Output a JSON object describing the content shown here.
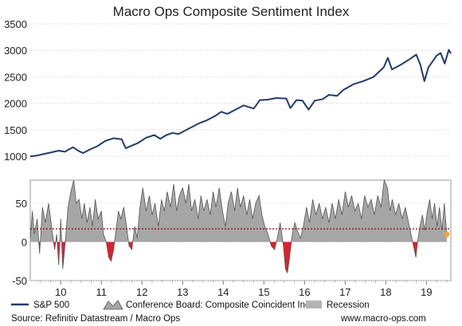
{
  "chart_data": [
    {
      "type": "line",
      "title": "Macro Ops Composite Sentiment Index",
      "y_ticks": [
        "1000",
        "1500",
        "2000",
        "2500",
        "3000",
        "3500"
      ],
      "ylim": [
        1000,
        3500
      ],
      "x_range": [
        2009.25,
        2019.6
      ],
      "grid": true,
      "series": [
        {
          "name": "S&P 500",
          "color": "#1f3b73",
          "points": [
            [
              2009.25,
              995
            ],
            [
              2009.4,
              1010
            ],
            [
              2009.6,
              1045
            ],
            [
              2009.75,
              1070
            ],
            [
              2009.95,
              1105
            ],
            [
              2010.1,
              1085
            ],
            [
              2010.3,
              1170
            ],
            [
              2010.45,
              1095
            ],
            [
              2010.55,
              1060
            ],
            [
              2010.7,
              1120
            ],
            [
              2010.9,
              1190
            ],
            [
              2011.1,
              1290
            ],
            [
              2011.3,
              1340
            ],
            [
              2011.5,
              1320
            ],
            [
              2011.6,
              1150
            ],
            [
              2011.75,
              1200
            ],
            [
              2011.9,
              1250
            ],
            [
              2012.1,
              1350
            ],
            [
              2012.3,
              1400
            ],
            [
              2012.45,
              1330
            ],
            [
              2012.6,
              1400
            ],
            [
              2012.75,
              1440
            ],
            [
              2012.9,
              1420
            ],
            [
              2013.1,
              1500
            ],
            [
              2013.4,
              1620
            ],
            [
              2013.6,
              1680
            ],
            [
              2013.8,
              1760
            ],
            [
              2013.95,
              1840
            ],
            [
              2014.1,
              1800
            ],
            [
              2014.3,
              1880
            ],
            [
              2014.5,
              1960
            ],
            [
              2014.75,
              1900
            ],
            [
              2014.9,
              2060
            ],
            [
              2015.1,
              2070
            ],
            [
              2015.3,
              2100
            ],
            [
              2015.55,
              2090
            ],
            [
              2015.65,
              1910
            ],
            [
              2015.8,
              2060
            ],
            [
              2015.95,
              2050
            ],
            [
              2016.1,
              1880
            ],
            [
              2016.25,
              2050
            ],
            [
              2016.45,
              2080
            ],
            [
              2016.6,
              2160
            ],
            [
              2016.8,
              2140
            ],
            [
              2016.95,
              2250
            ],
            [
              2017.2,
              2360
            ],
            [
              2017.45,
              2420
            ],
            [
              2017.7,
              2500
            ],
            [
              2017.95,
              2680
            ],
            [
              2018.05,
              2860
            ],
            [
              2018.15,
              2640
            ],
            [
              2018.35,
              2720
            ],
            [
              2018.6,
              2840
            ],
            [
              2018.75,
              2920
            ],
            [
              2018.85,
              2730
            ],
            [
              2018.95,
              2420
            ],
            [
              2019.05,
              2680
            ],
            [
              2019.25,
              2900
            ],
            [
              2019.35,
              2950
            ],
            [
              2019.45,
              2750
            ],
            [
              2019.55,
              3010
            ],
            [
              2019.6,
              2940
            ]
          ]
        }
      ]
    },
    {
      "type": "area",
      "y_ticks": [
        "-50",
        "0",
        "50"
      ],
      "ylim": [
        -50,
        80
      ],
      "x_range": [
        2009.25,
        2019.6
      ],
      "x_ticks": [
        "10",
        "11",
        "12",
        "13",
        "14",
        "15",
        "16",
        "17",
        "18",
        "19"
      ],
      "x_tick_values": [
        2010,
        2011,
        2012,
        2013,
        2014,
        2015,
        2016,
        2017,
        2018,
        2019
      ],
      "threshold": 17,
      "threshold_color": "#8b1a1a",
      "positive_color": "#a6a6a6",
      "negative_color": "#e0202a",
      "last_point": [
        2019.5,
        10
      ],
      "last_point_color": "#f5a623",
      "series": [
        {
          "name": "Conference Board: Composite Coincident Index",
          "points": [
            [
              2009.25,
              5
            ],
            [
              2009.3,
              40
            ],
            [
              2009.35,
              10
            ],
            [
              2009.42,
              30
            ],
            [
              2009.48,
              -15
            ],
            [
              2009.55,
              45
            ],
            [
              2009.62,
              25
            ],
            [
              2009.7,
              50
            ],
            [
              2009.78,
              18
            ],
            [
              2009.85,
              -10
            ],
            [
              2009.9,
              10
            ],
            [
              2009.95,
              -30
            ],
            [
              2010.0,
              30
            ],
            [
              2010.05,
              -35
            ],
            [
              2010.12,
              5
            ],
            [
              2010.18,
              45
            ],
            [
              2010.25,
              65
            ],
            [
              2010.32,
              80
            ],
            [
              2010.38,
              50
            ],
            [
              2010.45,
              55
            ],
            [
              2010.52,
              30
            ],
            [
              2010.58,
              50
            ],
            [
              2010.65,
              25
            ],
            [
              2010.72,
              45
            ],
            [
              2010.78,
              20
            ],
            [
              2010.85,
              55
            ],
            [
              2010.92,
              30
            ],
            [
              2011.0,
              40
            ],
            [
              2011.05,
              10
            ],
            [
              2011.12,
              0
            ],
            [
              2011.18,
              -20
            ],
            [
              2011.24,
              -25
            ],
            [
              2011.3,
              -10
            ],
            [
              2011.36,
              15
            ],
            [
              2011.42,
              40
            ],
            [
              2011.48,
              30
            ],
            [
              2011.55,
              45
            ],
            [
              2011.62,
              20
            ],
            [
              2011.68,
              -5
            ],
            [
              2011.75,
              -10
            ],
            [
              2011.82,
              20
            ],
            [
              2011.88,
              5
            ],
            [
              2011.95,
              45
            ],
            [
              2012.02,
              70
            ],
            [
              2012.1,
              40
            ],
            [
              2012.18,
              60
            ],
            [
              2012.25,
              35
            ],
            [
              2012.32,
              50
            ],
            [
              2012.4,
              20
            ],
            [
              2012.48,
              55
            ],
            [
              2012.55,
              40
            ],
            [
              2012.62,
              65
            ],
            [
              2012.7,
              45
            ],
            [
              2012.78,
              75
            ],
            [
              2012.85,
              40
            ],
            [
              2012.92,
              60
            ],
            [
              2013.0,
              70
            ],
            [
              2013.08,
              50
            ],
            [
              2013.15,
              75
            ],
            [
              2013.22,
              40
            ],
            [
              2013.3,
              55
            ],
            [
              2013.38,
              30
            ],
            [
              2013.45,
              60
            ],
            [
              2013.52,
              40
            ],
            [
              2013.6,
              55
            ],
            [
              2013.68,
              35
            ],
            [
              2013.75,
              65
            ],
            [
              2013.82,
              45
            ],
            [
              2013.9,
              70
            ],
            [
              2013.98,
              40
            ],
            [
              2014.05,
              20
            ],
            [
              2014.12,
              50
            ],
            [
              2014.2,
              65
            ],
            [
              2014.28,
              40
            ],
            [
              2014.35,
              70
            ],
            [
              2014.42,
              45
            ],
            [
              2014.5,
              60
            ],
            [
              2014.58,
              35
            ],
            [
              2014.65,
              55
            ],
            [
              2014.72,
              30
            ],
            [
              2014.8,
              50
            ],
            [
              2014.88,
              60
            ],
            [
              2014.95,
              35
            ],
            [
              2015.02,
              20
            ],
            [
              2015.1,
              10
            ],
            [
              2015.18,
              -5
            ],
            [
              2015.26,
              -10
            ],
            [
              2015.33,
              5
            ],
            [
              2015.4,
              25
            ],
            [
              2015.48,
              -5
            ],
            [
              2015.53,
              -35
            ],
            [
              2015.58,
              -40
            ],
            [
              2015.63,
              -20
            ],
            [
              2015.7,
              10
            ],
            [
              2015.76,
              25
            ],
            [
              2015.82,
              15
            ],
            [
              2015.9,
              5
            ],
            [
              2015.97,
              20
            ],
            [
              2016.05,
              45
            ],
            [
              2016.12,
              25
            ],
            [
              2016.2,
              55
            ],
            [
              2016.28,
              35
            ],
            [
              2016.36,
              50
            ],
            [
              2016.44,
              30
            ],
            [
              2016.52,
              45
            ],
            [
              2016.6,
              25
            ],
            [
              2016.68,
              50
            ],
            [
              2016.76,
              30
            ],
            [
              2016.84,
              55
            ],
            [
              2016.92,
              35
            ],
            [
              2017.0,
              65
            ],
            [
              2017.08,
              45
            ],
            [
              2017.16,
              60
            ],
            [
              2017.24,
              40
            ],
            [
              2017.32,
              50
            ],
            [
              2017.4,
              30
            ],
            [
              2017.48,
              60
            ],
            [
              2017.56,
              45
            ],
            [
              2017.64,
              55
            ],
            [
              2017.72,
              35
            ],
            [
              2017.8,
              60
            ],
            [
              2017.88,
              45
            ],
            [
              2017.96,
              80
            ],
            [
              2018.04,
              70
            ],
            [
              2018.1,
              40
            ],
            [
              2018.16,
              55
            ],
            [
              2018.24,
              35
            ],
            [
              2018.32,
              50
            ],
            [
              2018.4,
              30
            ],
            [
              2018.48,
              45
            ],
            [
              2018.56,
              25
            ],
            [
              2018.64,
              5
            ],
            [
              2018.7,
              -10
            ],
            [
              2018.74,
              -20
            ],
            [
              2018.78,
              0
            ],
            [
              2018.84,
              20
            ],
            [
              2018.9,
              35
            ],
            [
              2018.96,
              15
            ],
            [
              2019.02,
              40
            ],
            [
              2019.08,
              55
            ],
            [
              2019.14,
              30
            ],
            [
              2019.2,
              50
            ],
            [
              2019.26,
              20
            ],
            [
              2019.32,
              45
            ],
            [
              2019.38,
              15
            ],
            [
              2019.44,
              50
            ],
            [
              2019.5,
              10
            ]
          ]
        }
      ]
    }
  ],
  "legend": {
    "sp500": "S&P 500",
    "coincident": "Conference Board: Composite Coincident Index",
    "recession": "Recession"
  },
  "footer": {
    "source": "Source: Refinitiv Datastream / Macro Ops",
    "website": "www.macro-ops.com"
  }
}
